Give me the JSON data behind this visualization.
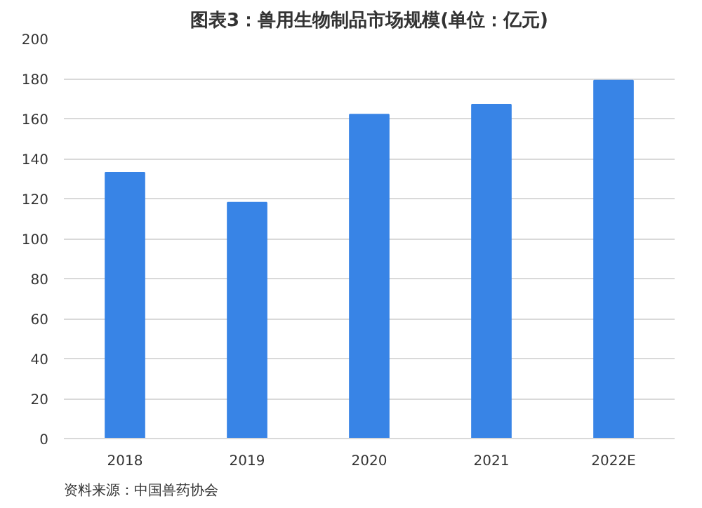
{
  "chart_data": {
    "type": "bar",
    "title": "图表3：兽用生物制品市场规模(单位：亿元)",
    "categories": [
      "2018",
      "2019",
      "2020",
      "2021",
      "2022E"
    ],
    "values": [
      133,
      118,
      162,
      167,
      179
    ],
    "color": "#3884e6",
    "ylim": [
      0,
      200
    ],
    "yticks": [
      0,
      20,
      40,
      60,
      80,
      100,
      120,
      140,
      160,
      180,
      200
    ],
    "grid": "y",
    "annotations": [
      "资料来源：中国兽药协会"
    ]
  }
}
